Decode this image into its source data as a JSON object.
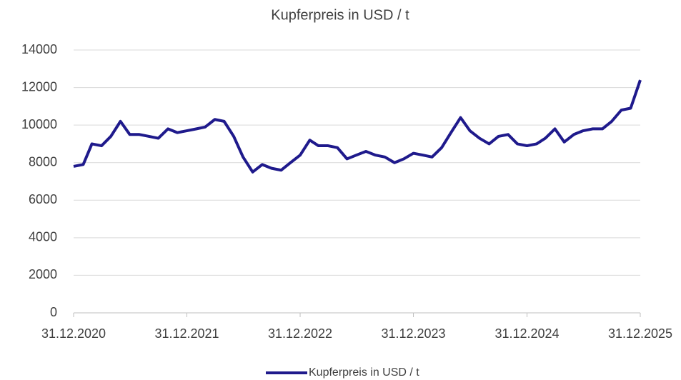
{
  "chart_data": {
    "type": "line",
    "title": "Kupferpreis in USD / t",
    "x": [
      "31.12.2020",
      "31.01.2021",
      "28.02.2021",
      "31.03.2021",
      "30.04.2021",
      "31.05.2021",
      "30.06.2021",
      "31.07.2021",
      "31.08.2021",
      "30.09.2021",
      "31.10.2021",
      "30.11.2021",
      "31.12.2021",
      "31.01.2022",
      "28.02.2022",
      "31.03.2022",
      "30.04.2022",
      "31.05.2022",
      "30.06.2022",
      "31.07.2022",
      "31.08.2022",
      "30.09.2022",
      "31.10.2022",
      "30.11.2022",
      "31.12.2022",
      "31.01.2023",
      "28.02.2023",
      "31.03.2023",
      "30.04.2023",
      "31.05.2023",
      "30.06.2023",
      "31.07.2023",
      "31.08.2023",
      "30.09.2023",
      "31.10.2023",
      "30.11.2023",
      "31.12.2023",
      "31.01.2024",
      "29.02.2024",
      "31.03.2024",
      "30.04.2024",
      "31.05.2024",
      "30.06.2024",
      "31.07.2024",
      "31.08.2024",
      "30.09.2024",
      "31.10.2024",
      "30.11.2024",
      "31.12.2024",
      "31.01.2025",
      "28.02.2025",
      "31.03.2025",
      "30.04.2025",
      "31.05.2025",
      "30.06.2025",
      "31.07.2025",
      "31.08.2025",
      "30.09.2025",
      "31.10.2025",
      "30.11.2025",
      "31.12.2025"
    ],
    "series": [
      {
        "name": "Kupferpreis in USD / t",
        "color": "#1f1a8c",
        "values": [
          7800,
          7900,
          9000,
          8900,
          9400,
          10200,
          9500,
          9500,
          9400,
          9300,
          9800,
          9600,
          9700,
          9800,
          9900,
          10300,
          10200,
          9400,
          8300,
          7500,
          7900,
          7700,
          7600,
          8000,
          8400,
          9200,
          8900,
          8900,
          8800,
          8200,
          8400,
          8600,
          8400,
          8300,
          8000,
          8200,
          8500,
          8400,
          8300,
          8800,
          9600,
          10400,
          9700,
          9300,
          9000,
          9400,
          9500,
          9000,
          8900,
          9000,
          9300,
          9800,
          9100,
          9500,
          9700,
          9800,
          9800,
          10200,
          10800,
          10900,
          12400
        ]
      }
    ],
    "xlim": [
      "31.12.2020",
      "31.12.2025"
    ],
    "xticks": [
      "31.12.2020",
      "31.12.2021",
      "31.12.2022",
      "31.12.2023",
      "31.12.2024",
      "31.12.2025"
    ],
    "ylim": [
      0,
      14000
    ],
    "yticks": [
      0,
      2000,
      4000,
      6000,
      8000,
      10000,
      12000,
      14000
    ],
    "grid": true,
    "legend": "bottom"
  }
}
